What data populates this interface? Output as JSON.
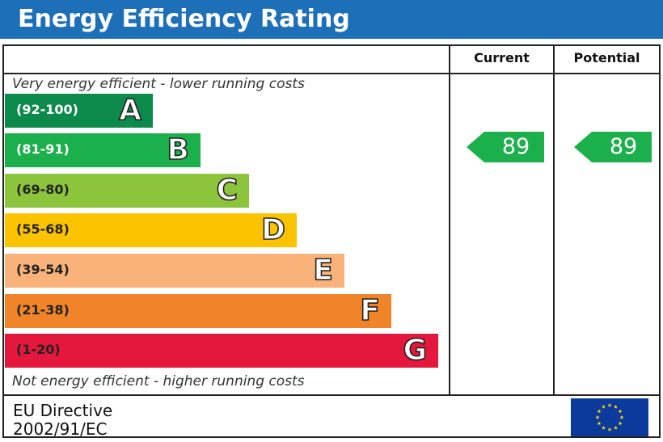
{
  "header": {
    "title": "Energy Efficiency Rating"
  },
  "columns": {
    "current": "Current",
    "potential": "Potential"
  },
  "captions": {
    "top": "Very energy efficient - lower running costs",
    "bottom": "Not energy efficient - higher running costs"
  },
  "footer": {
    "line1": "EU Directive",
    "line2": "2002/91/EC",
    "flag_icon": "eu-flag-icon"
  },
  "chart_data": {
    "type": "bar",
    "title": "Energy Efficiency Rating",
    "bands": [
      {
        "range": "(92-100)",
        "letter": "A",
        "color": "#0c8a4c",
        "range_color": "#ffffff"
      },
      {
        "range": "(81-91)",
        "letter": "B",
        "color": "#1cb04c",
        "range_color": "#ffffff"
      },
      {
        "range": "(69-80)",
        "letter": "C",
        "color": "#8cc43c",
        "range_color": "#222222"
      },
      {
        "range": "(55-68)",
        "letter": "D",
        "color": "#fcc400",
        "range_color": "#222222"
      },
      {
        "range": "(39-54)",
        "letter": "E",
        "color": "#f8b27a",
        "range_color": "#222222"
      },
      {
        "range": "(21-38)",
        "letter": "F",
        "color": "#f08428",
        "range_color": "#222222"
      },
      {
        "range": "(1-20)",
        "letter": "G",
        "color": "#e4183c",
        "range_color": "#222222"
      }
    ],
    "current": {
      "value": 89,
      "label": "89",
      "band": "B",
      "color": "#1cb04c"
    },
    "potential": {
      "value": 89,
      "label": "89",
      "band": "B",
      "color": "#1cb04c"
    }
  }
}
